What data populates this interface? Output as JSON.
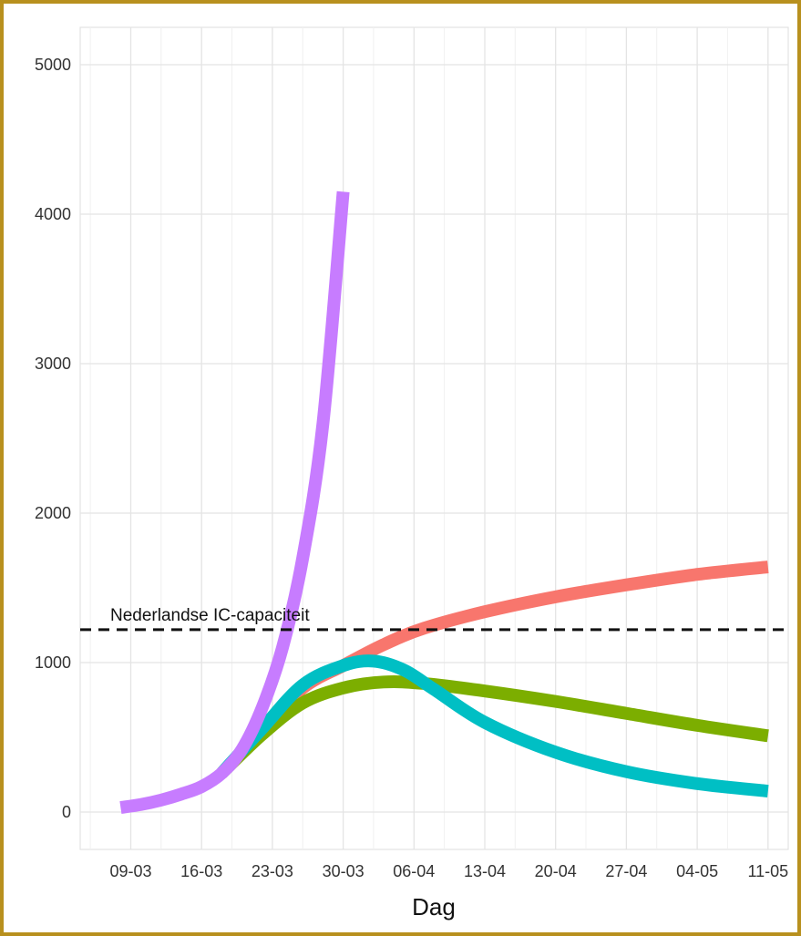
{
  "chart_data": {
    "type": "line",
    "title": "",
    "xlabel": "Dag",
    "ylabel": "",
    "x_tick_labels": [
      "09-03",
      "16-03",
      "23-03",
      "30-03",
      "06-04",
      "13-04",
      "20-04",
      "27-04",
      "04-05",
      "11-05"
    ],
    "y_ticks": [
      0,
      1000,
      2000,
      3000,
      4000,
      5000
    ],
    "y_tick_labels": [
      "0",
      "1000",
      "2000",
      "3000",
      "4000",
      "5000"
    ],
    "xlim": [
      "2020-03-04",
      "2020-05-13"
    ],
    "ylim": [
      -250,
      5250
    ],
    "grid": true,
    "legend": "none",
    "reference_line": {
      "y": 1220,
      "label": "Nederlandse IC-capaciteit"
    },
    "series": [
      {
        "color": "#c77cff",
        "points": [
          [
            "2020-03-08",
            30
          ],
          [
            "2020-03-10",
            50
          ],
          [
            "2020-03-12",
            80
          ],
          [
            "2020-03-14",
            120
          ],
          [
            "2020-03-16",
            170
          ],
          [
            "2020-03-18",
            260
          ],
          [
            "2020-03-20",
            420
          ],
          [
            "2020-03-22",
            700
          ],
          [
            "2020-03-24",
            1100
          ],
          [
            "2020-03-26",
            1700
          ],
          [
            "2020-03-28",
            2600
          ],
          [
            "2020-03-30",
            4150
          ]
        ]
      },
      {
        "color": "#f8766d",
        "points": [
          [
            "2020-03-18",
            260
          ],
          [
            "2020-03-22",
            550
          ],
          [
            "2020-03-26",
            830
          ],
          [
            "2020-03-30",
            980
          ],
          [
            "2020-04-03",
            1120
          ],
          [
            "2020-04-07",
            1230
          ],
          [
            "2020-04-13",
            1340
          ],
          [
            "2020-04-20",
            1440
          ],
          [
            "2020-04-27",
            1520
          ],
          [
            "2020-05-04",
            1590
          ],
          [
            "2020-05-11",
            1640
          ]
        ]
      },
      {
        "color": "#7cae00",
        "points": [
          [
            "2020-03-18",
            260
          ],
          [
            "2020-03-22",
            520
          ],
          [
            "2020-03-26",
            730
          ],
          [
            "2020-03-30",
            830
          ],
          [
            "2020-04-03",
            870
          ],
          [
            "2020-04-07",
            860
          ],
          [
            "2020-04-13",
            810
          ],
          [
            "2020-04-20",
            740
          ],
          [
            "2020-04-27",
            660
          ],
          [
            "2020-05-04",
            580
          ],
          [
            "2020-05-11",
            510
          ]
        ]
      },
      {
        "color": "#00bfc4",
        "points": [
          [
            "2020-03-18",
            260
          ],
          [
            "2020-03-22",
            560
          ],
          [
            "2020-03-26",
            850
          ],
          [
            "2020-03-30",
            980
          ],
          [
            "2020-04-02",
            1010
          ],
          [
            "2020-04-05",
            950
          ],
          [
            "2020-04-08",
            820
          ],
          [
            "2020-04-13",
            600
          ],
          [
            "2020-04-20",
            400
          ],
          [
            "2020-04-27",
            270
          ],
          [
            "2020-05-04",
            190
          ],
          [
            "2020-05-11",
            140
          ]
        ]
      }
    ]
  }
}
